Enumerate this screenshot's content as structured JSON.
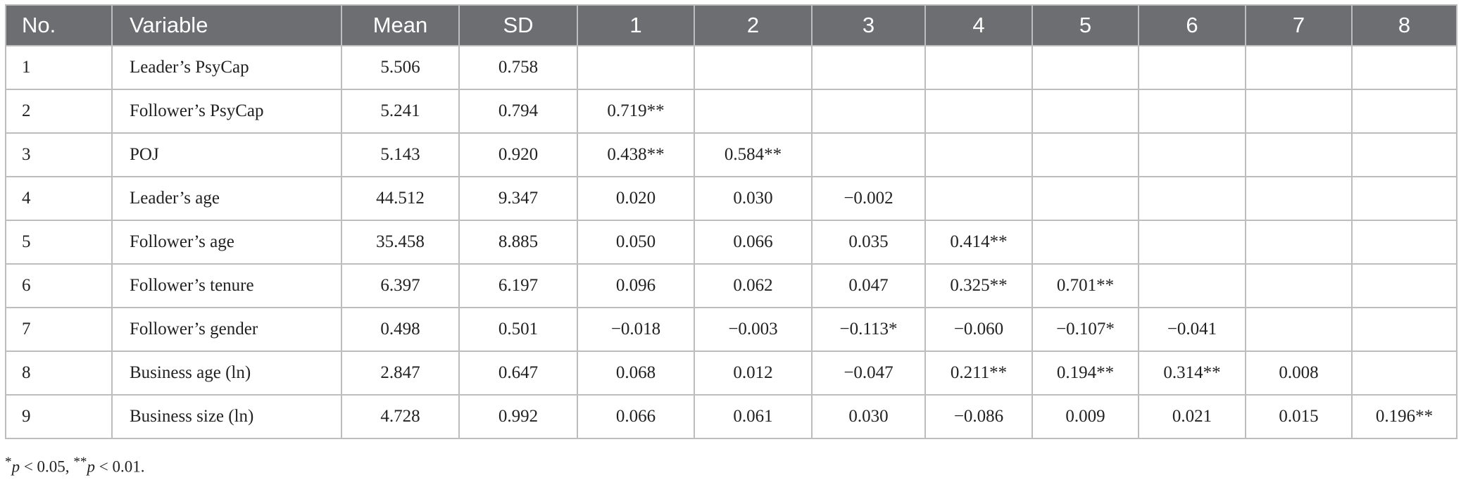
{
  "table": {
    "headers": [
      "No.",
      "Variable",
      "Mean",
      "SD",
      "1",
      "2",
      "3",
      "4",
      "5",
      "6",
      "7",
      "8"
    ],
    "rows": [
      [
        "1",
        "Leader’s PsyCap",
        "5.506",
        "0.758",
        "",
        "",
        "",
        "",
        "",
        "",
        "",
        ""
      ],
      [
        "2",
        "Follower’s PsyCap",
        "5.241",
        "0.794",
        "0.719**",
        "",
        "",
        "",
        "",
        "",
        "",
        ""
      ],
      [
        "3",
        "POJ",
        "5.143",
        "0.920",
        "0.438**",
        "0.584**",
        "",
        "",
        "",
        "",
        "",
        ""
      ],
      [
        "4",
        "Leader’s age",
        "44.512",
        "9.347",
        "0.020",
        "0.030",
        "−0.002",
        "",
        "",
        "",
        "",
        ""
      ],
      [
        "5",
        "Follower’s age",
        "35.458",
        "8.885",
        "0.050",
        "0.066",
        "0.035",
        "0.414**",
        "",
        "",
        "",
        ""
      ],
      [
        "6",
        "Follower’s tenure",
        "6.397",
        "6.197",
        "0.096",
        "0.062",
        "0.047",
        "0.325**",
        "0.701**",
        "",
        "",
        ""
      ],
      [
        "7",
        "Follower’s gender",
        "0.498",
        "0.501",
        "−0.018",
        "−0.003",
        "−0.113*",
        "−0.060",
        "−0.107*",
        "−0.041",
        "",
        ""
      ],
      [
        "8",
        "Business age (ln)",
        "2.847",
        "0.647",
        "0.068",
        "0.012",
        "−0.047",
        "0.211**",
        "0.194**",
        "0.314**",
        "0.008",
        ""
      ],
      [
        "9",
        "Business size (ln)",
        "4.728",
        "0.992",
        "0.066",
        "0.061",
        "0.030",
        "−0.086",
        "0.009",
        "0.021",
        "0.015",
        "0.196**"
      ]
    ]
  },
  "footnote": {
    "star1": "*",
    "p1": "p",
    "cond1": " < 0.05, ",
    "star2": "**",
    "p2": "p",
    "cond2": " < 0.01."
  },
  "colors": {
    "header_bg": "#6d6e71",
    "header_text": "#ffffff",
    "border": "#bdbdbd"
  }
}
